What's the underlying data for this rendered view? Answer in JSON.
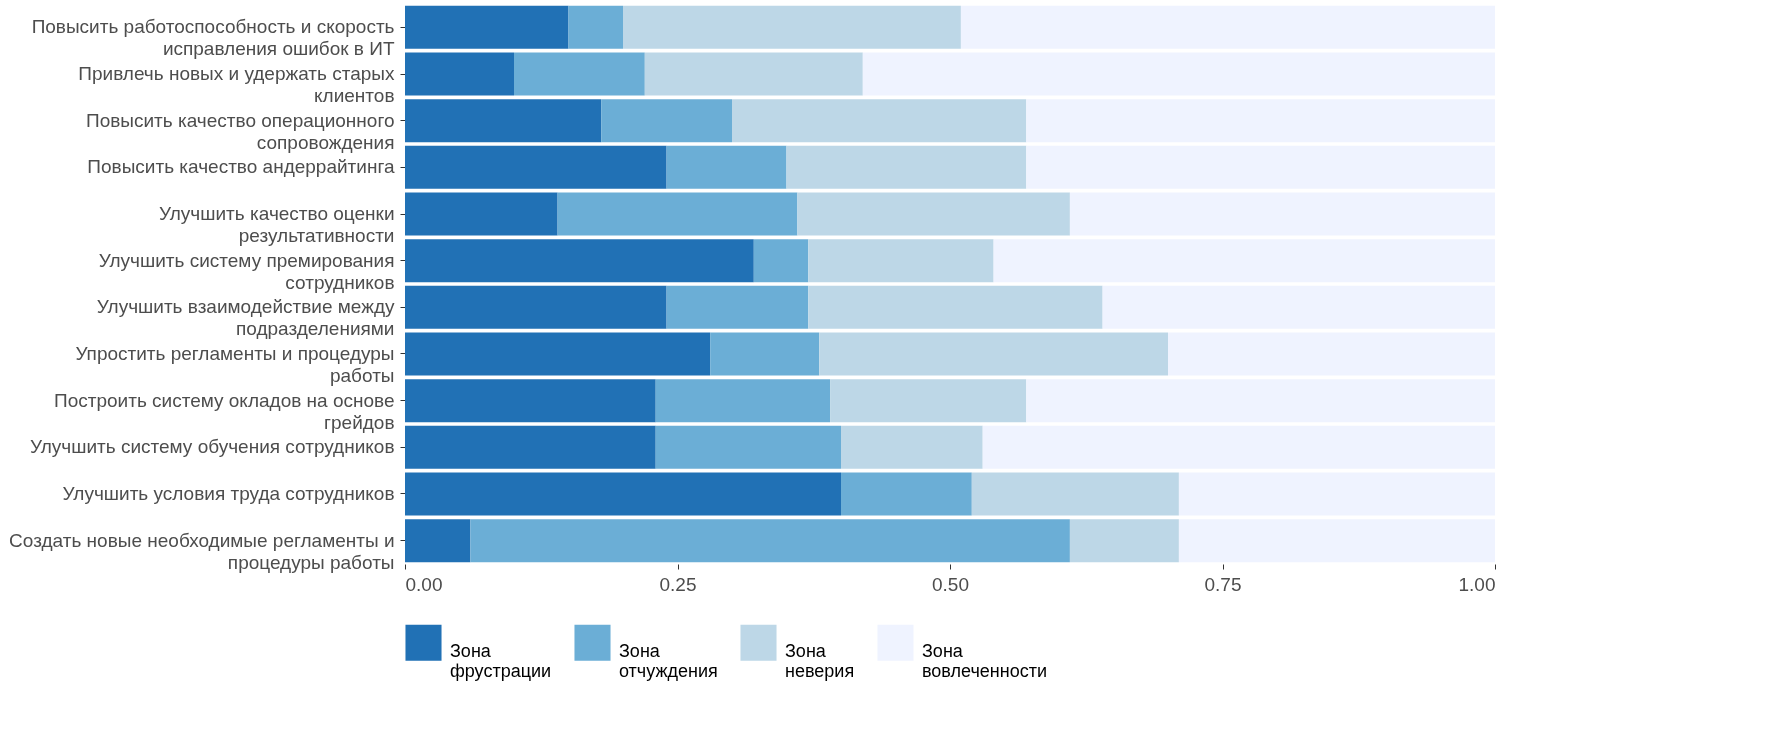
{
  "chart_data": {
    "type": "bar",
    "orientation": "horizontal",
    "stacked": true,
    "categories": [
      "Повысить работоспособность и скорость исправления ошибок в ИТ",
      "Привлечь новых и удержать старых клиентов",
      "Повысить качество операционного сопровождения",
      "Повысить качество андеррайтинга",
      "Улучшить качество оценки результативности",
      "Улучшить систему премирования сотрудников",
      "Улучшить взаимодействие между подразделениями",
      "Упростить регламенты и процедуры работы",
      "Построить систему окладов на основе грейдов",
      "Улучшить систему обучения сотрудников",
      "Улучшить условия труда сотрудников",
      "Создать новые необходимые регламенты и процедуры работы"
    ],
    "series": [
      {
        "name": "Зона фрустрации",
        "color": "#2171b5",
        "values": [
          0.15,
          0.1,
          0.18,
          0.24,
          0.14,
          0.32,
          0.24,
          0.28,
          0.23,
          0.23,
          0.4,
          0.06
        ]
      },
      {
        "name": "Зона отчуждения",
        "color": "#6baed6",
        "values": [
          0.05,
          0.12,
          0.12,
          0.11,
          0.22,
          0.05,
          0.13,
          0.1,
          0.16,
          0.17,
          0.12,
          0.55
        ]
      },
      {
        "name": "Зона неверия",
        "color": "#bdd7e7",
        "values": [
          0.31,
          0.2,
          0.27,
          0.22,
          0.25,
          0.17,
          0.27,
          0.32,
          0.18,
          0.13,
          0.19,
          0.1
        ]
      },
      {
        "name": "Зона вовлеченности",
        "color": "#eff3ff",
        "values": [
          0.49,
          0.58,
          0.43,
          0.43,
          0.39,
          0.46,
          0.36,
          0.3,
          0.43,
          0.47,
          0.29,
          0.29
        ]
      }
    ],
    "xlim": [
      0,
      1
    ],
    "xticks": [
      {
        "value": 0,
        "label": "0.00"
      },
      {
        "value": 0.25,
        "label": "0.25"
      },
      {
        "value": 0.5,
        "label": "0.50"
      },
      {
        "value": 0.75,
        "label": "0.75"
      },
      {
        "value": 1,
        "label": "1.00"
      }
    ],
    "grid": false,
    "legend": "bottom"
  }
}
